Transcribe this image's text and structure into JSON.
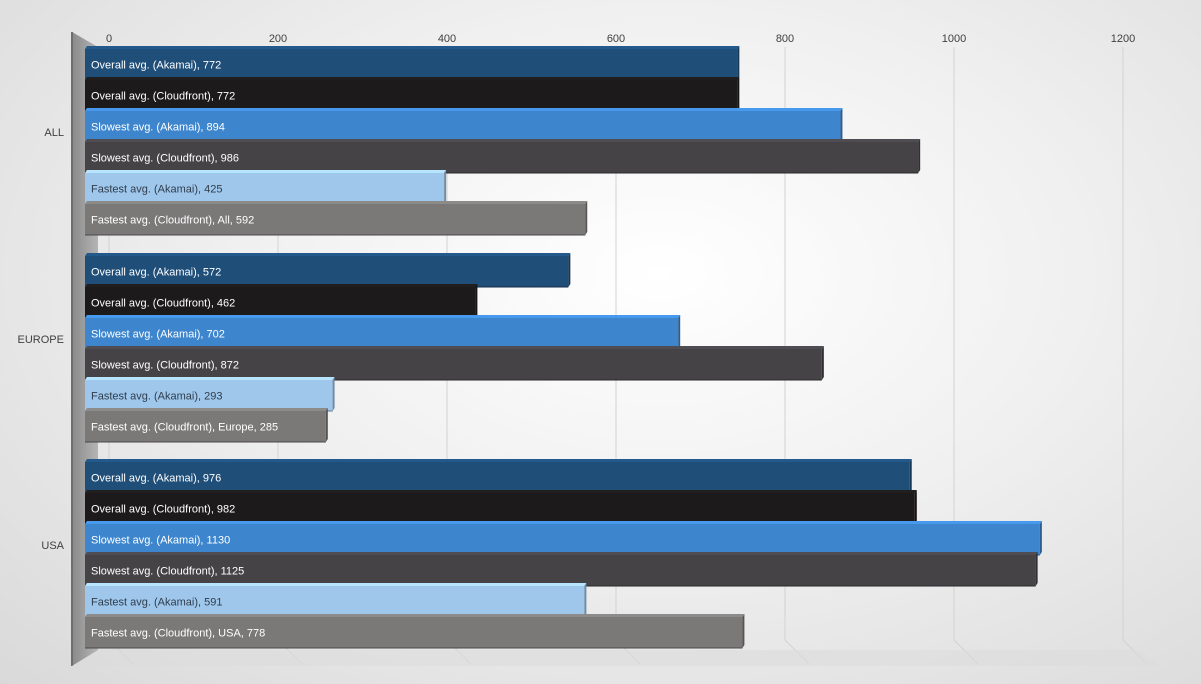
{
  "chart_data": {
    "type": "bar",
    "orientation": "horizontal",
    "style": "3d-clustered",
    "title": "",
    "xlabel": "",
    "ylabel": "",
    "xlim": [
      0,
      1200
    ],
    "x_ticks": [
      0,
      200,
      400,
      600,
      800,
      1000,
      1200
    ],
    "x_tick_labels": [
      "0",
      "200",
      "400",
      "600",
      "800",
      "1000",
      "1200"
    ],
    "x_axis_position": "top",
    "grid": true,
    "legend": "none",
    "categories": [
      "ALL",
      "EUROPE",
      "USA"
    ],
    "series": [
      {
        "values": [
          772,
          572,
          976
        ],
        "color": "#1f4e79",
        "labels": [
          "Overall avg. (Akamai), 772",
          "Overall avg. (Akamai), 572",
          "Overall avg. (Akamai), 976"
        ]
      },
      {
        "values": [
          772,
          462,
          982
        ],
        "color": "#1c1a1b",
        "labels": [
          "Overall avg. (Cloudfront), 772",
          "Overall avg. (Cloudfront), 462",
          "Overall avg. (Cloudfront), 982"
        ]
      },
      {
        "values": [
          894,
          702,
          1130
        ],
        "color": "#3d85cd",
        "labels": [
          "Slowest avg. (Akamai), 894",
          "Slowest avg. (Akamai), 702",
          "Slowest avg. (Akamai), 1130"
        ]
      },
      {
        "values": [
          986,
          872,
          1125
        ],
        "color": "#454346",
        "labels": [
          "Slowest avg. (Cloudfront), 986",
          "Slowest avg. (Cloudfront), 872",
          "Slowest avg. (Cloudfront), 1125"
        ]
      },
      {
        "values": [
          425,
          293,
          591
        ],
        "color": "#9fc7ec",
        "labels": [
          "Fastest avg. (Akamai), 425",
          "Fastest avg. (Akamai), 293",
          "Fastest avg. (Akamai), 591"
        ]
      },
      {
        "values": [
          592,
          285,
          778
        ],
        "color": "#7b7878",
        "labels": [
          "Fastest avg. (Cloudfront), All, 592",
          "Fastest avg. (Cloudfront), Europe, 285",
          "Fastest avg. (Cloudfront), USA, 778"
        ]
      }
    ]
  }
}
